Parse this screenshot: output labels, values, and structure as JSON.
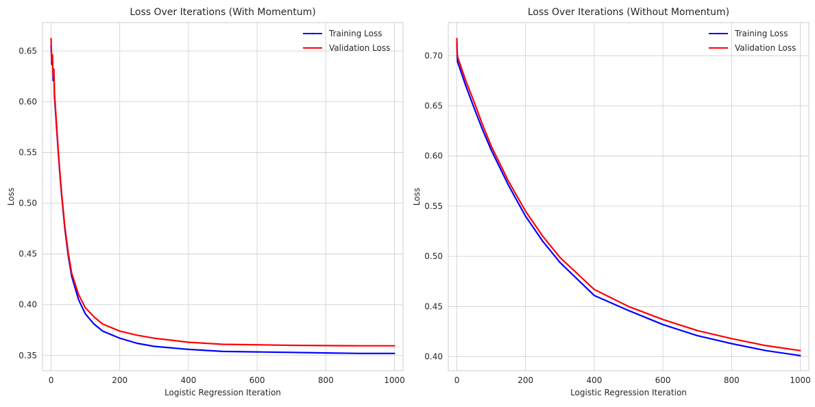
{
  "chart_data": [
    {
      "type": "line",
      "title": "Loss Over Iterations (With Momentum)",
      "xlabel": "Logistic Regression Iteration",
      "ylabel": "Loss",
      "xlim": [
        -25,
        1025
      ],
      "ylim": [
        0.335,
        0.678
      ],
      "xticks": [
        0,
        200,
        400,
        600,
        800,
        1000
      ],
      "yticks": [
        0.35,
        0.4,
        0.45,
        0.5,
        0.55,
        0.6,
        0.65
      ],
      "ytick_labels": [
        "0.35",
        "0.40",
        "0.45",
        "0.50",
        "0.55",
        "0.60",
        "0.65"
      ],
      "grid": true,
      "legend_position": "top-right",
      "series": [
        {
          "name": "Training Loss",
          "color": "#0000ff",
          "x": [
            0,
            2,
            4,
            6,
            8,
            10,
            12,
            15,
            20,
            25,
            30,
            40,
            50,
            60,
            80,
            100,
            125,
            150,
            200,
            250,
            300,
            400,
            500,
            600,
            700,
            800,
            900,
            1000
          ],
          "y": [
            0.655,
            0.637,
            0.645,
            0.621,
            0.63,
            0.605,
            0.595,
            0.58,
            0.555,
            0.532,
            0.51,
            0.475,
            0.448,
            0.428,
            0.405,
            0.391,
            0.381,
            0.374,
            0.367,
            0.362,
            0.359,
            0.356,
            0.354,
            0.3535,
            0.353,
            0.3525,
            0.352,
            0.352
          ]
        },
        {
          "name": "Validation Loss",
          "color": "#ff0000",
          "x": [
            0,
            2,
            4,
            6,
            8,
            10,
            12,
            15,
            20,
            25,
            30,
            40,
            50,
            60,
            80,
            100,
            125,
            150,
            200,
            250,
            300,
            400,
            500,
            600,
            700,
            800,
            900,
            1000
          ],
          "y": [
            0.662,
            0.64,
            0.646,
            0.625,
            0.632,
            0.608,
            0.598,
            0.583,
            0.557,
            0.534,
            0.512,
            0.477,
            0.451,
            0.431,
            0.41,
            0.397,
            0.388,
            0.381,
            0.374,
            0.37,
            0.367,
            0.363,
            0.361,
            0.3605,
            0.36,
            0.3597,
            0.3595,
            0.3595
          ]
        }
      ]
    },
    {
      "type": "line",
      "title": "Loss Over Iterations (Without Momentum)",
      "xlabel": "Logistic Regression Iteration",
      "ylabel": "Loss",
      "xlim": [
        -25,
        1025
      ],
      "ylim": [
        0.386,
        0.733
      ],
      "xticks": [
        0,
        200,
        400,
        600,
        800,
        1000
      ],
      "yticks": [
        0.4,
        0.45,
        0.5,
        0.55,
        0.6,
        0.65,
        0.7
      ],
      "ytick_labels": [
        "0.40",
        "0.45",
        "0.50",
        "0.55",
        "0.60",
        "0.65",
        "0.70"
      ],
      "grid": true,
      "legend_position": "top-right",
      "series": [
        {
          "name": "Training Loss",
          "color": "#0000ff",
          "x": [
            0,
            1,
            2,
            10,
            25,
            50,
            75,
            100,
            150,
            200,
            250,
            300,
            400,
            500,
            600,
            700,
            800,
            900,
            1000
          ],
          "y": [
            0.712,
            0.699,
            0.694,
            0.686,
            0.671,
            0.648,
            0.626,
            0.606,
            0.571,
            0.54,
            0.515,
            0.494,
            0.461,
            0.446,
            0.432,
            0.421,
            0.413,
            0.406,
            0.401
          ]
        },
        {
          "name": "Validation Loss",
          "color": "#ff0000",
          "x": [
            0,
            1,
            2,
            10,
            25,
            50,
            75,
            100,
            150,
            200,
            250,
            300,
            400,
            500,
            600,
            700,
            800,
            900,
            1000
          ],
          "y": [
            0.717,
            0.704,
            0.699,
            0.691,
            0.676,
            0.654,
            0.631,
            0.61,
            0.575,
            0.545,
            0.52,
            0.499,
            0.467,
            0.45,
            0.437,
            0.426,
            0.418,
            0.411,
            0.406
          ]
        }
      ]
    }
  ]
}
